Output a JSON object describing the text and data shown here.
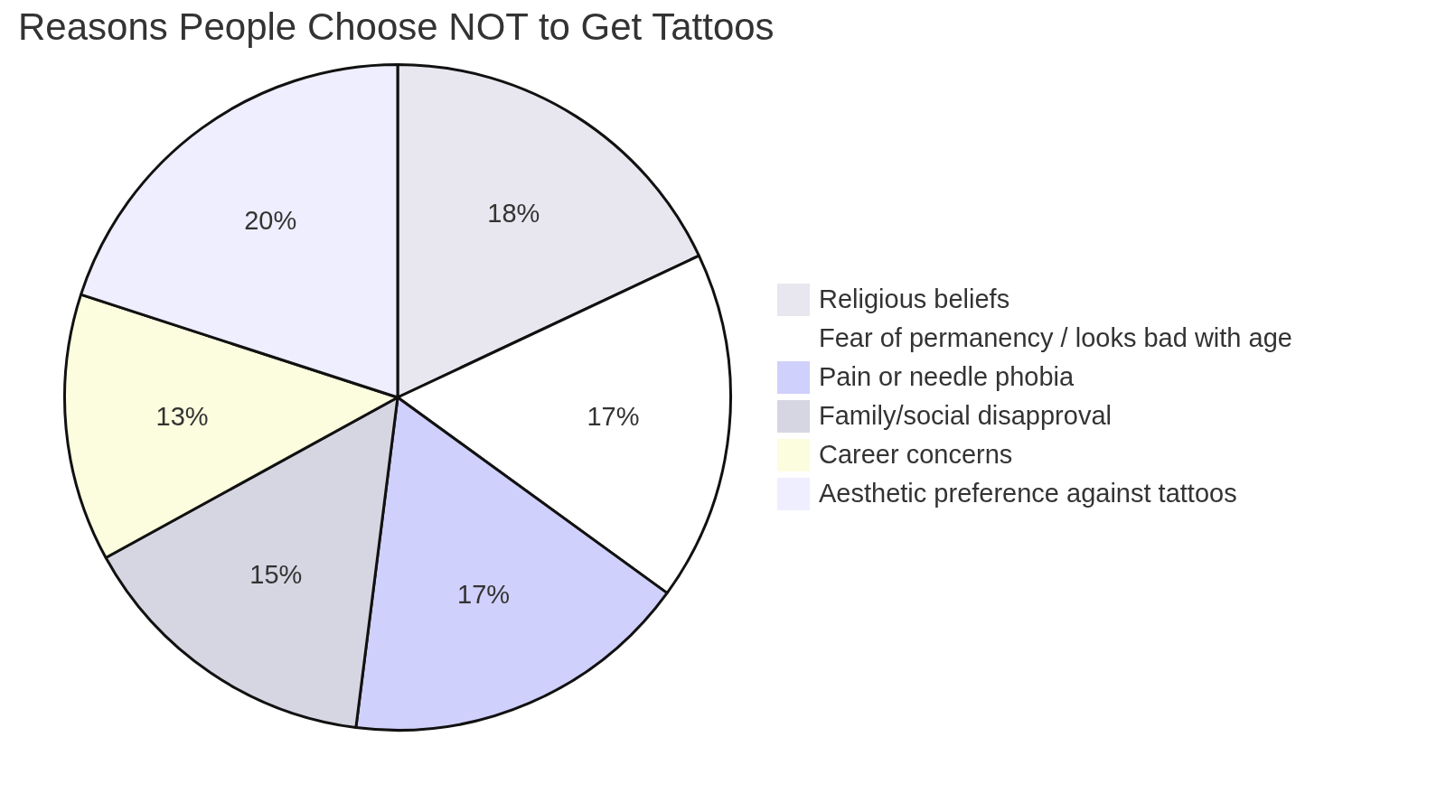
{
  "chart_data": {
    "type": "pie",
    "title": "Reasons People Choose NOT to Get Tattoos",
    "categories": [
      "Religious beliefs",
      "Fear of permanency / looks bad with age",
      "Pain or needle phobia",
      "Family/social disapproval",
      "Career concerns",
      "Aesthetic preference against tattoos"
    ],
    "values": [
      18,
      17,
      17,
      15,
      13,
      20
    ],
    "value_labels": [
      "18%",
      "17%",
      "17%",
      "15%",
      "13%",
      "20%"
    ],
    "colors": [
      "#e8e7ef",
      "#ffffff",
      "#d0d0fc",
      "#d6d6e3",
      "#fcfcdf",
      "#eeeeff"
    ],
    "legend": "right"
  }
}
